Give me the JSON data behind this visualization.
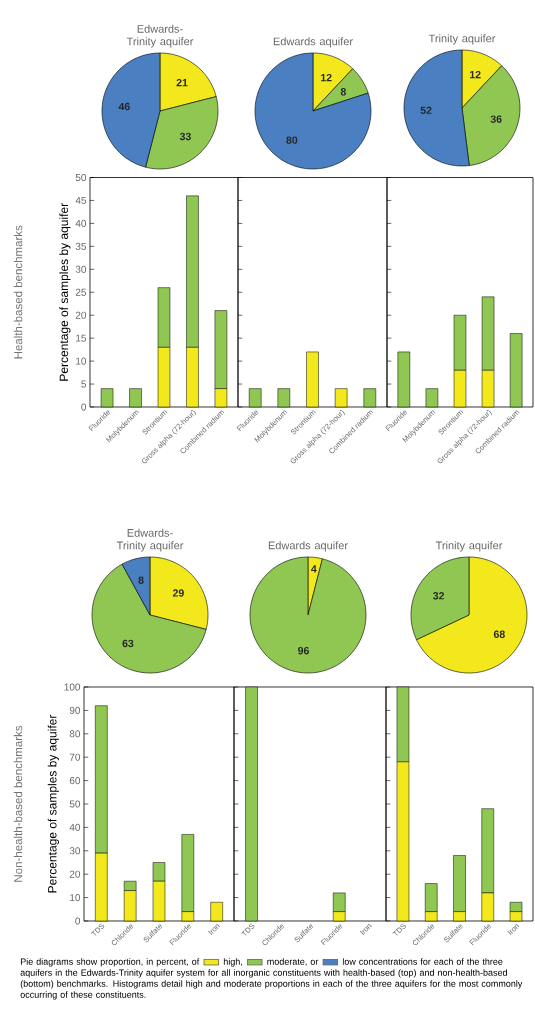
{
  "chart_data": [
    {
      "type": "pie",
      "title": "Edwards-Trinity aquifer",
      "categories": [
        null,
        null,
        null
      ],
      "values": [
        21,
        33,
        46
      ],
      "colors": [
        "#f2e81c",
        "#8fc752",
        "#4a7fc1"
      ],
      "data_labels": true
    },
    {
      "type": "pie",
      "title": "Edwards aquifer",
      "categories": [
        null,
        null,
        null
      ],
      "values": [
        12,
        8,
        80
      ],
      "colors": [
        "#f2e81c",
        "#8fc752",
        "#4a7fc1"
      ],
      "data_labels": true
    },
    {
      "type": "pie",
      "title": "Trinity aquifer",
      "categories": [
        null,
        null,
        null
      ],
      "values": [
        12,
        36,
        52
      ],
      "colors": [
        "#f2e81c",
        "#8fc752",
        "#4a7fc1"
      ],
      "data_labels": true
    },
    {
      "type": "bar",
      "stacked": true,
      "ylabel": "Percentage of samples by aquifer",
      "annotations": [
        "Health-based benchmarks"
      ],
      "categories": [
        "Fluoride",
        "Molybdenum",
        "Strontium",
        "Gross alpha (72-hour)",
        "Combined radium"
      ],
      "series": [
        {
          "color": "#f2e81c",
          "values": [
            0,
            0,
            13,
            13,
            4
          ]
        },
        {
          "color": "#8fc752",
          "values": [
            4,
            4,
            13,
            33,
            17
          ]
        }
      ],
      "ylim": [
        0,
        50
      ],
      "yticks": [
        0,
        5,
        10,
        15,
        20,
        25,
        30,
        35,
        40,
        45,
        50
      ]
    },
    {
      "type": "bar",
      "stacked": true,
      "tick_labels": "x",
      "categories": [
        "Fluoride",
        "Molybdenum",
        "Strontium",
        "Gross alpha (72-hour)",
        "Combined radium"
      ],
      "series": [
        {
          "color": "#f2e81c",
          "values": [
            0,
            0,
            12,
            4,
            0
          ]
        },
        {
          "color": "#8fc752",
          "values": [
            4,
            4,
            0,
            0,
            4
          ]
        }
      ],
      "ylim": [
        0,
        50
      ],
      "yticks": [
        0,
        5,
        10,
        15,
        20,
        25,
        30,
        35,
        40,
        45,
        50
      ]
    },
    {
      "type": "bar",
      "stacked": true,
      "tick_labels": "x",
      "categories": [
        "Fluoride",
        "Molybdenum",
        "Strontium",
        "Gross alpha (72-hour)",
        "Combined radium"
      ],
      "series": [
        {
          "color": "#f2e81c",
          "values": [
            0,
            0,
            8,
            8,
            0
          ]
        },
        {
          "color": "#8fc752",
          "values": [
            12,
            4,
            12,
            16,
            16
          ]
        }
      ],
      "ylim": [
        0,
        50
      ],
      "yticks": [
        0,
        5,
        10,
        15,
        20,
        25,
        30,
        35,
        40,
        45,
        50
      ]
    },
    {
      "type": "pie",
      "title": "Edwards-Trinity aquifer",
      "categories": [
        null,
        null,
        null
      ],
      "values": [
        29,
        63,
        8
      ],
      "colors": [
        "#f2e81c",
        "#8fc752",
        "#4a7fc1"
      ],
      "data_labels": true
    },
    {
      "type": "pie",
      "title": "Edwards aquifer",
      "categories": [
        null,
        null
      ],
      "values": [
        4,
        96
      ],
      "colors": [
        "#f2e81c",
        "#8fc752"
      ],
      "data_labels": true
    },
    {
      "type": "pie",
      "title": "Trinity aquifer",
      "categories": [
        null,
        null
      ],
      "values": [
        68,
        32
      ],
      "colors": [
        "#f2e81c",
        "#8fc752"
      ],
      "data_labels": true
    },
    {
      "type": "bar",
      "stacked": true,
      "ylabel": "Percentage of samples by aquifer",
      "annotations": [
        "Non-health-based benchmarks"
      ],
      "categories": [
        "TDS",
        "Chloride",
        "Sulfate",
        "Fluoride",
        "Iron"
      ],
      "series": [
        {
          "color": "#f2e81c",
          "values": [
            29,
            13,
            17,
            4,
            8
          ]
        },
        {
          "color": "#8fc752",
          "values": [
            63,
            4,
            8,
            33,
            0
          ]
        }
      ],
      "ylim": [
        0,
        100
      ],
      "yticks": [
        0,
        10,
        20,
        30,
        40,
        50,
        60,
        70,
        80,
        90,
        100
      ]
    },
    {
      "type": "bar",
      "stacked": true,
      "tick_labels": "x",
      "categories": [
        "TDS",
        "Chloride",
        "Sulfate",
        "Fluoride",
        "Iron"
      ],
      "series": [
        {
          "color": "#f2e81c",
          "values": [
            0,
            0,
            0,
            4,
            0
          ]
        },
        {
          "color": "#8fc752",
          "values": [
            100,
            0,
            0,
            8,
            0
          ]
        }
      ],
      "ylim": [
        0,
        100
      ],
      "yticks": [
        0,
        10,
        20,
        30,
        40,
        50,
        60,
        70,
        80,
        90,
        100
      ]
    },
    {
      "type": "bar",
      "stacked": true,
      "tick_labels": "x",
      "categories": [
        "TDS",
        "Chloride",
        "Sulfate",
        "Fluoride",
        "Iron"
      ],
      "series": [
        {
          "color": "#f2e81c",
          "values": [
            68,
            4,
            4,
            12,
            4
          ]
        },
        {
          "color": "#8fc752",
          "values": [
            32,
            12,
            24,
            36,
            4
          ]
        }
      ],
      "ylim": [
        0,
        100
      ],
      "yticks": [
        0,
        10,
        20,
        30,
        40,
        50,
        60,
        70,
        80,
        90,
        100
      ]
    },
    {
      "type": "other",
      "colors": [
        "#f2e81c",
        "#8fc752",
        "#4a7fc1"
      ],
      "annotations": [
        "Pie diagrams show proportion, in percent, of",
        "high,",
        "moderate, or",
        "low concentrations for each of the three aquifers in the Edwards-Trinity aquifer system for all inorganic constituents with health-based (top) and non-health-based (bottom) benchmarks. Histograms detail high and moderate proportions in each of the three aquifers for the most commonly occurring of these constituents."
      ]
    }
  ]
}
